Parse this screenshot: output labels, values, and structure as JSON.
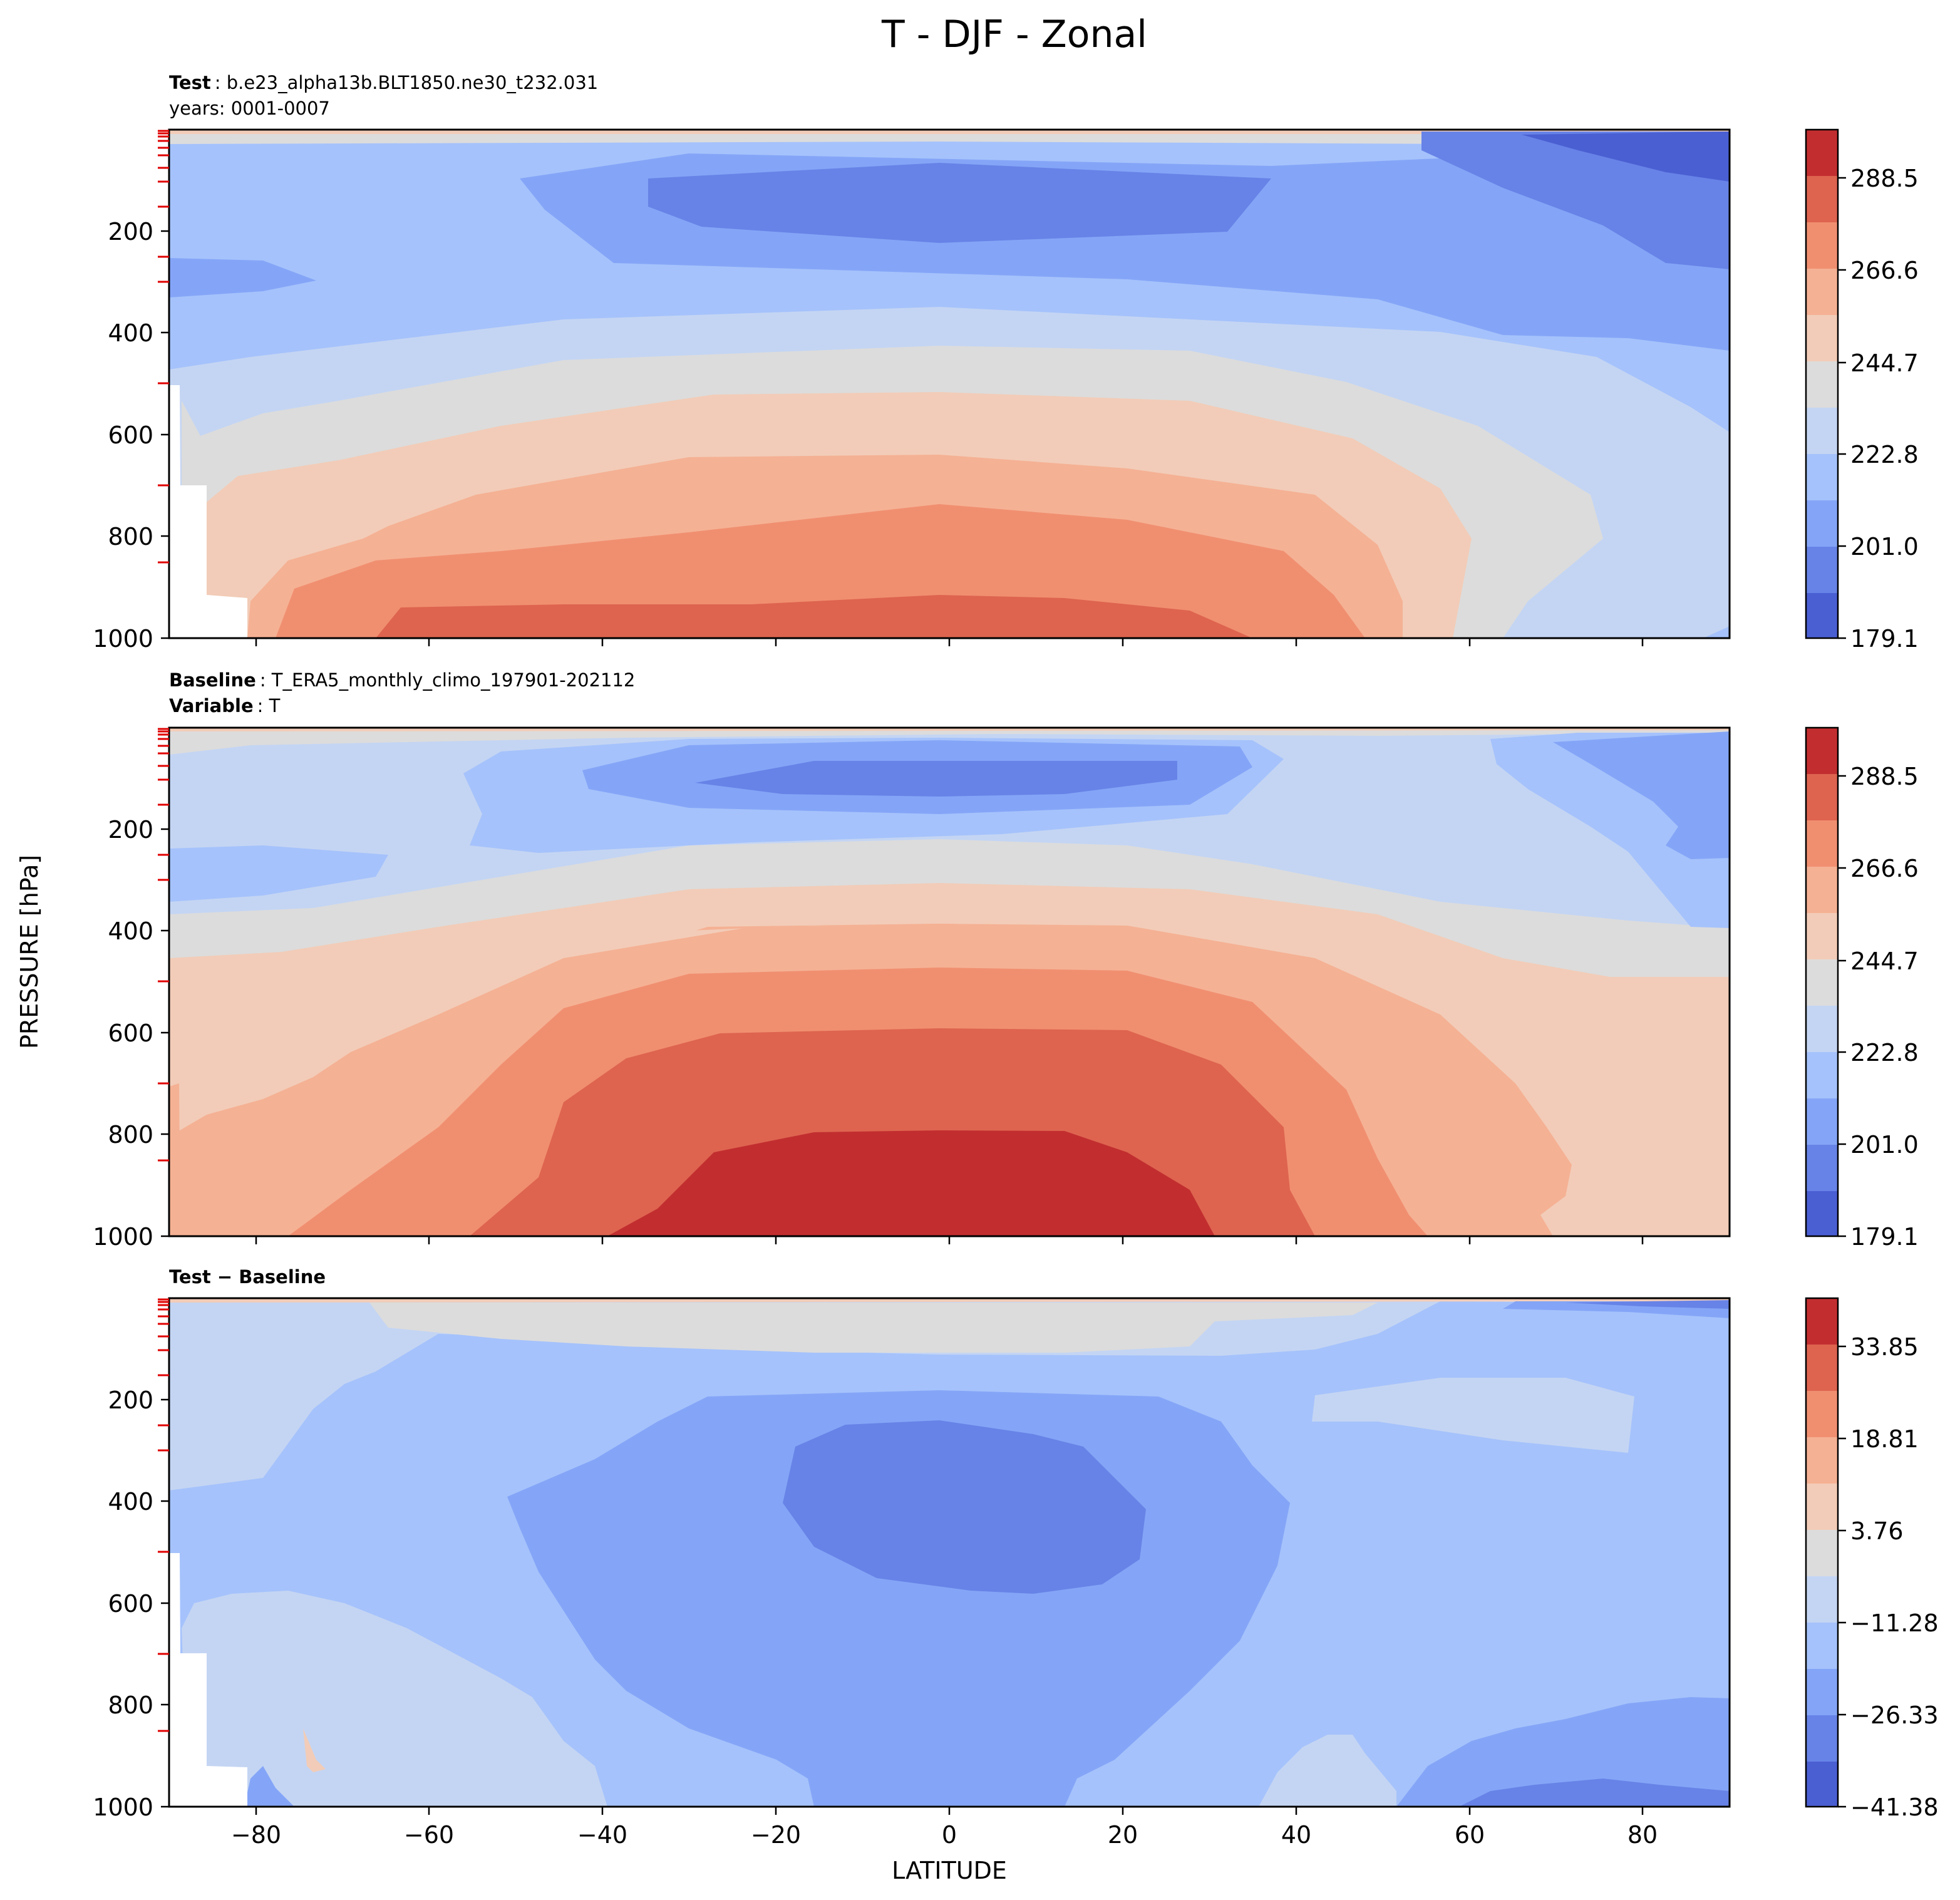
{
  "chart_data": {
    "type": "contourf",
    "title": "T - DJF - Zonal",
    "xlabel": "LATITUDE",
    "ylabel": "PRESSURE [hPa]",
    "xlim": [
      -90,
      90
    ],
    "ylim": [
      1000,
      0
    ],
    "x_ticks": [
      "−80",
      "−60",
      "−40",
      "−20",
      "0",
      "20",
      "40",
      "60",
      "80"
    ],
    "y_ticks": [
      "200",
      "400",
      "600",
      "800",
      "1000"
    ],
    "panels": [
      {
        "panel": "test",
        "header": [
          {
            "label": "Test",
            "value": ": b.e23_alpha13b.BLT1850.ne30_t232.031"
          },
          {
            "label": "",
            "value": "years: 0001-0007"
          }
        ],
        "colorbar_ticks": [
          "288.5",
          "266.6",
          "244.7",
          "222.8",
          "201.0",
          "179.1"
        ],
        "colorbar_range": [
          179.1,
          299.4
        ]
      },
      {
        "panel": "baseline",
        "header": [
          {
            "label": "Baseline",
            "value": ": T_ERA5_monthly_climo_197901-202112"
          },
          {
            "label": "Variable",
            "value": ": T"
          }
        ],
        "colorbar_ticks": [
          "288.5",
          "266.6",
          "244.7",
          "222.8",
          "201.0",
          "179.1"
        ],
        "colorbar_range": [
          179.1,
          299.4
        ]
      },
      {
        "panel": "difference",
        "header": [
          {
            "label": "Test − Baseline",
            "value": ""
          }
        ],
        "colorbar_ticks": [
          "33.85",
          "18.81",
          "3.76",
          "−11.28",
          "−26.33",
          "−41.38"
        ],
        "colorbar_range": [
          -41.38,
          41.38
        ]
      }
    ],
    "colormap": [
      "#4a5fd2",
      "#6783e7",
      "#84a5f7",
      "#a5c2fc",
      "#c4d5f3",
      "#dcdcdc",
      "#f2ccb8",
      "#f5b194",
      "#f08f70",
      "#de644f",
      "#c22e30"
    ]
  }
}
